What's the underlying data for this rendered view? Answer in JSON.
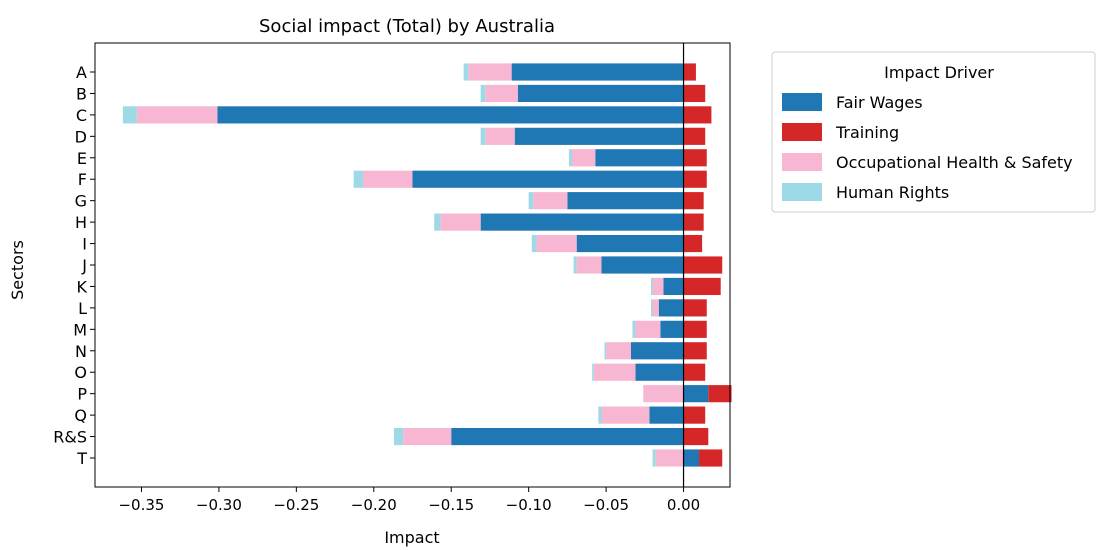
{
  "chart_data": {
    "type": "bar",
    "orientation": "horizontal",
    "stacked": true,
    "title": "Social impact (Total) by Australia",
    "xlabel": "Impact",
    "ylabel": "Sectors",
    "xlim": [
      -0.38,
      0.03
    ],
    "xticks": [
      -0.35,
      -0.3,
      -0.25,
      -0.2,
      -0.15,
      -0.1,
      -0.05,
      0.0
    ],
    "xtick_labels": [
      "−0.35",
      "−0.30",
      "−0.25",
      "−0.20",
      "−0.15",
      "−0.10",
      "−0.05",
      "0.00"
    ],
    "categories": [
      "A",
      "B",
      "C",
      "D",
      "E",
      "F",
      "G",
      "H",
      "I",
      "J",
      "K",
      "L",
      "M",
      "N",
      "O",
      "P",
      "Q",
      "R&S",
      "T"
    ],
    "legend": {
      "title": "Impact Driver",
      "placement": "outside-right-top"
    },
    "series": [
      {
        "name": "Fair Wages",
        "color": "#1f77b4",
        "values": [
          -0.111,
          -0.107,
          -0.301,
          -0.109,
          -0.057,
          -0.175,
          -0.075,
          -0.131,
          -0.069,
          -0.053,
          -0.013,
          -0.016,
          -0.015,
          -0.034,
          -0.031,
          0.016,
          -0.022,
          -0.15,
          0.01
        ]
      },
      {
        "name": "Training",
        "color": "#d62728",
        "values": [
          0.008,
          0.014,
          0.018,
          0.014,
          0.015,
          0.015,
          0.013,
          0.013,
          0.012,
          0.025,
          0.024,
          0.015,
          0.015,
          0.015,
          0.014,
          0.015,
          0.014,
          0.016,
          0.015
        ]
      },
      {
        "name": "Occupational Health & Safety",
        "color": "#f7b6d2",
        "values": [
          -0.028,
          -0.021,
          -0.052,
          -0.019,
          -0.015,
          -0.032,
          -0.022,
          -0.026,
          -0.026,
          -0.016,
          -0.007,
          -0.004,
          -0.016,
          -0.016,
          -0.027,
          -0.026,
          -0.031,
          -0.031,
          -0.018
        ]
      },
      {
        "name": "Human Rights",
        "color": "#9edae5",
        "values": [
          -0.003,
          -0.003,
          -0.009,
          -0.003,
          -0.002,
          -0.006,
          -0.003,
          -0.004,
          -0.003,
          -0.002,
          -0.001,
          -0.001,
          -0.002,
          -0.001,
          -0.001,
          0.0,
          -0.002,
          -0.006,
          -0.002
        ]
      }
    ]
  }
}
